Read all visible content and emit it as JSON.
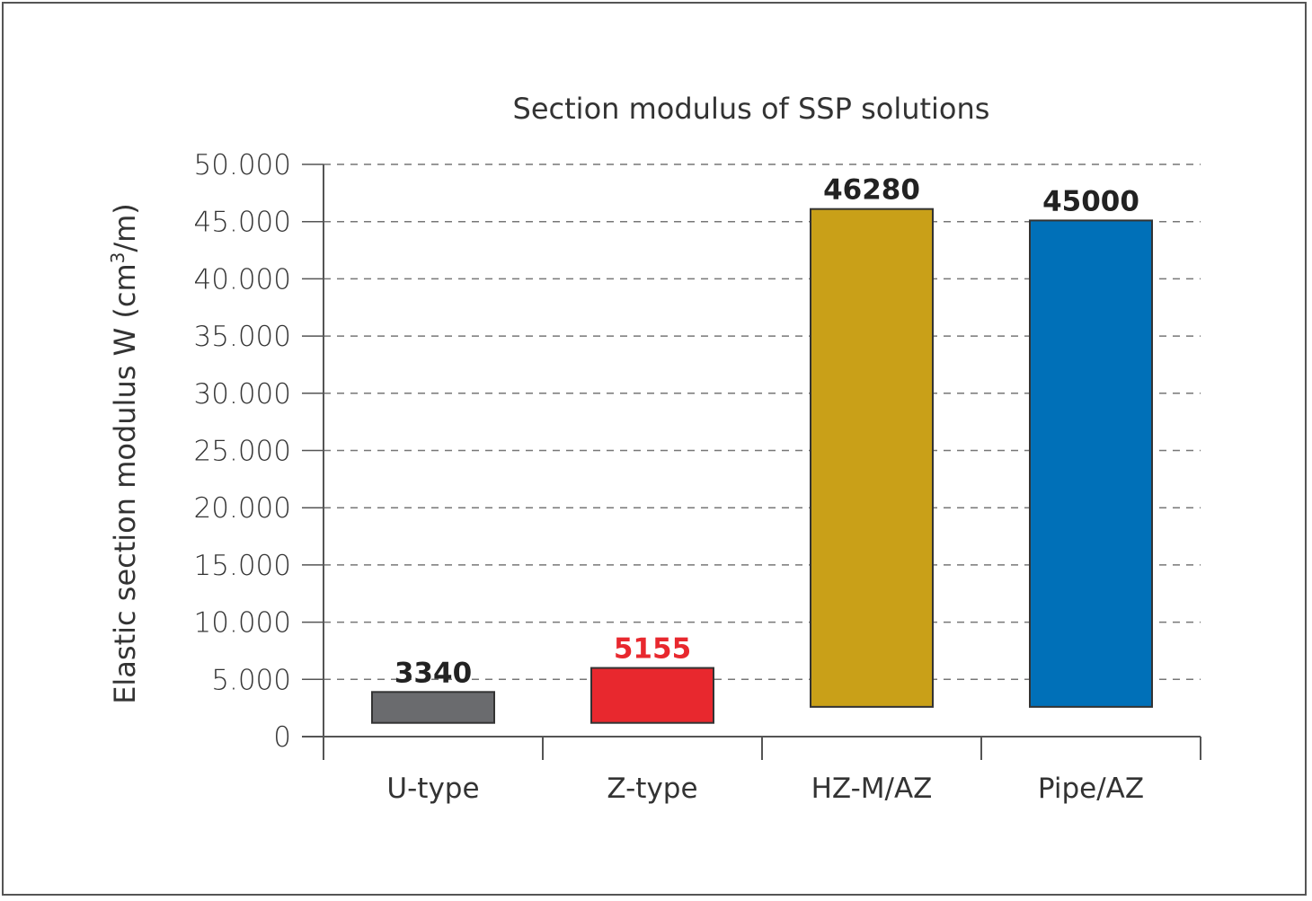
{
  "chart_data": {
    "type": "bar",
    "title": "Section modulus of SSP solutions",
    "ylabel": "Elastic section modulus W (cm",
    "ylabel_sup": "3",
    "ylabel_end": "/m)",
    "xlabel": "",
    "ylim": [
      0,
      50000
    ],
    "yticks": [
      0,
      5000,
      10000,
      15000,
      20000,
      25000,
      30000,
      35000,
      40000,
      45000,
      50000
    ],
    "ytick_labels": [
      "0",
      "5.000",
      "10.000",
      "15.000",
      "20.000",
      "25.000",
      "30.000",
      "35.000",
      "40.000",
      "45.000",
      "50.000"
    ],
    "grid": true,
    "categories": [
      "U-type",
      "Z-type",
      "HZ-M/AZ",
      "Pipe/AZ"
    ],
    "bars": [
      {
        "bottom": 1200,
        "top": 3900,
        "label": "3340",
        "color": "#6a6b6e",
        "label_color": "#222222"
      },
      {
        "bottom": 1200,
        "top": 6000,
        "label": "5155",
        "color": "#e8282e",
        "label_color": "#e8282e"
      },
      {
        "bottom": 2600,
        "top": 46100,
        "label": "46280",
        "color": "#c9a018",
        "label_color": "#222222"
      },
      {
        "bottom": 2600,
        "top": 45100,
        "label": "45000",
        "color": "#0070b8",
        "label_color": "#222222"
      }
    ]
  }
}
